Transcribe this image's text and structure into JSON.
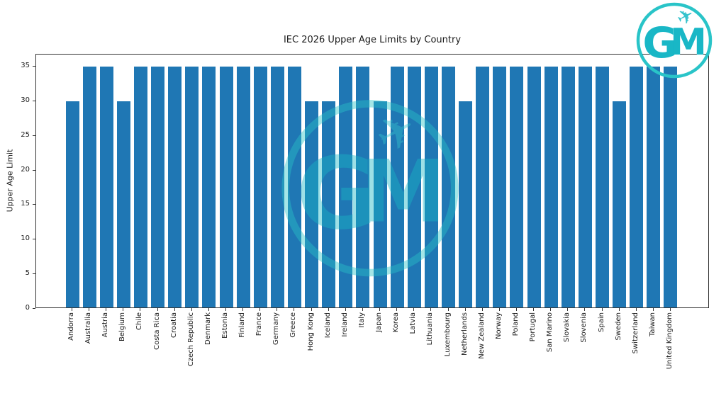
{
  "chart_data": {
    "type": "bar",
    "title": "IEC 2026 Upper Age Limits by Country",
    "xlabel": "",
    "ylabel": "Upper Age Limit",
    "categories": [
      "Andorra",
      "Australia",
      "Austria",
      "Belgium",
      "Chile",
      "Costa Rica",
      "Croatia",
      "Czech Republic",
      "Denmark",
      "Estonia",
      "Finland",
      "France",
      "Germany",
      "Greece",
      "Hong Kong",
      "Iceland",
      "Ireland",
      "Italy",
      "Japan",
      "Korea",
      "Latvia",
      "Lithuania",
      "Luxembourg",
      "Netherlands",
      "New Zealand",
      "Norway",
      "Poland",
      "Portugal",
      "San Marino",
      "Slovakia",
      "Slovenia",
      "Spain",
      "Sweden",
      "Switzerland",
      "Taiwan",
      "United Kingdom"
    ],
    "values": [
      30,
      35,
      35,
      30,
      35,
      35,
      35,
      35,
      35,
      35,
      35,
      35,
      35,
      35,
      30,
      30,
      35,
      35,
      30,
      35,
      35,
      35,
      35,
      30,
      35,
      35,
      35,
      35,
      35,
      35,
      35,
      35,
      30,
      35,
      35,
      35
    ],
    "yticks": [
      0,
      5,
      10,
      15,
      20,
      25,
      30,
      35
    ],
    "ylim": [
      0,
      36.75
    ],
    "grid": false,
    "legend": null,
    "bar_color": "#1f77b4",
    "axis_color": "#333333",
    "text_color": "#1a1a1a"
  },
  "logo": {
    "letter_g": "G",
    "letter_m": "M",
    "plane_glyph": "✈",
    "letter_color": "#19b7c6",
    "circle_color": "#29c4c8",
    "plane_color": "#35c3cd"
  }
}
